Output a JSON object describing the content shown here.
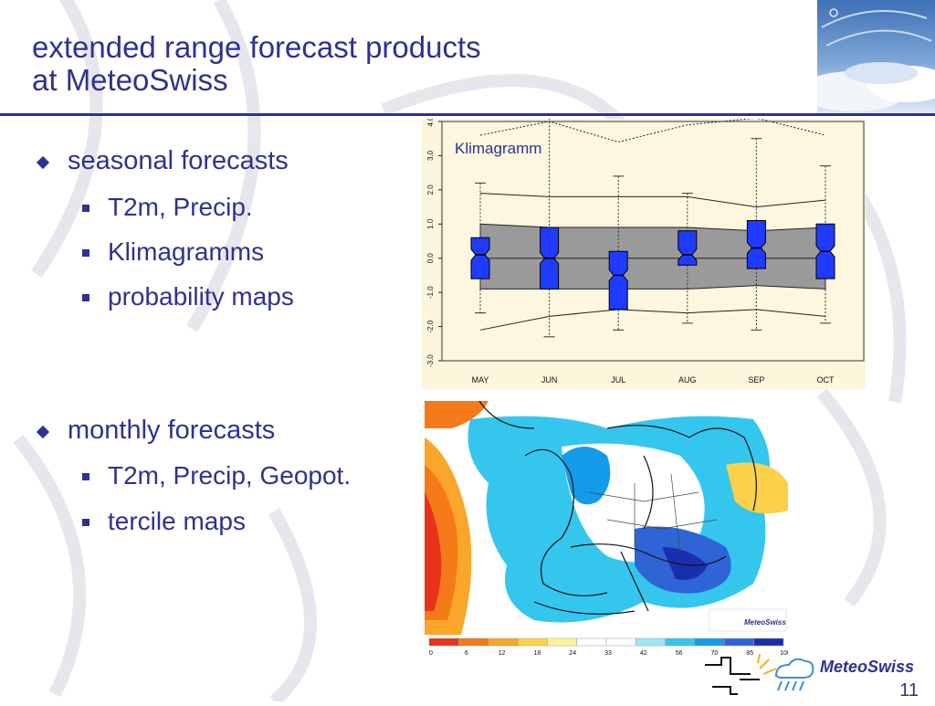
{
  "slide": {
    "title_line1": "extended range forecast products",
    "title_line2": "at MeteoSwiss",
    "page_number": "11",
    "brand": "MeteoSwiss"
  },
  "bullets": {
    "seasonal": "seasonal forecasts",
    "seasonal_items": [
      "T2m, Precip.",
      "Klimagramms",
      "probability maps"
    ],
    "monthly": "monthly forecasts",
    "monthly_items": [
      "T2m, Precip, Geopot.",
      "tercile maps"
    ]
  },
  "colors": {
    "accent": "#2e3192",
    "chart_bg": "#fdf5dc",
    "box_fill": "#1f3bff",
    "band_fill": "#9a9a9a"
  },
  "chart_data": {
    "type": "box",
    "title": "Klimagramm",
    "categories": [
      "MAY",
      "JUN",
      "JUL",
      "AUG",
      "SEP",
      "OCT"
    ],
    "ylim": [
      -3.0,
      4.0
    ],
    "yticks": [
      "-3.0",
      "-2.0",
      "-1.0",
      "0.0",
      "1.0",
      "2.0",
      "3.0",
      "4.0"
    ],
    "boxes": [
      {
        "q1": -0.6,
        "median": 0.1,
        "q3": 0.6,
        "whisker_low": -1.6,
        "whisker_high": 2.2
      },
      {
        "q1": -0.9,
        "median": 0.0,
        "q3": 0.9,
        "whisker_low": -2.3,
        "whisker_high": 4.1
      },
      {
        "q1": -1.5,
        "median": -0.5,
        "q3": 0.2,
        "whisker_low": -2.1,
        "whisker_high": 2.4
      },
      {
        "q1": -0.2,
        "median": 0.1,
        "q3": 0.8,
        "whisker_low": -1.9,
        "whisker_high": 1.9
      },
      {
        "q1": -0.3,
        "median": 0.3,
        "q3": 1.1,
        "whisker_low": -2.1,
        "whisker_high": 3.5
      },
      {
        "q1": -0.6,
        "median": 0.2,
        "q3": 1.0,
        "whisker_low": -1.9,
        "whisker_high": 2.7
      }
    ],
    "clim_band": {
      "upper": [
        1.0,
        0.9,
        0.9,
        0.9,
        0.8,
        0.9
      ],
      "lower": [
        -0.9,
        -0.9,
        -0.9,
        -0.9,
        -0.8,
        -0.9
      ],
      "outer_high": [
        1.9,
        1.8,
        1.8,
        1.8,
        1.5,
        1.7
      ],
      "outer_low": [
        -2.1,
        -1.7,
        -1.5,
        -1.6,
        -1.5,
        -1.7
      ],
      "max_dotted": [
        3.6,
        4.0,
        3.4,
        3.9,
        4.1,
        3.6
      ]
    }
  },
  "map_legend": {
    "ticks": [
      "0",
      "6",
      "12",
      "18",
      "24",
      "33",
      "42",
      "56",
      "70",
      "85",
      "100"
    ],
    "colors": [
      "#e8331a",
      "#f57a1a",
      "#f9a62a",
      "#fbd04a",
      "#fff59a",
      "#ffffff",
      "#ffffff",
      "#9ee8f5",
      "#35c6ee",
      "#149bea",
      "#2f64d6",
      "#1a2fb0"
    ],
    "logo_text": "MeteoSwiss"
  }
}
